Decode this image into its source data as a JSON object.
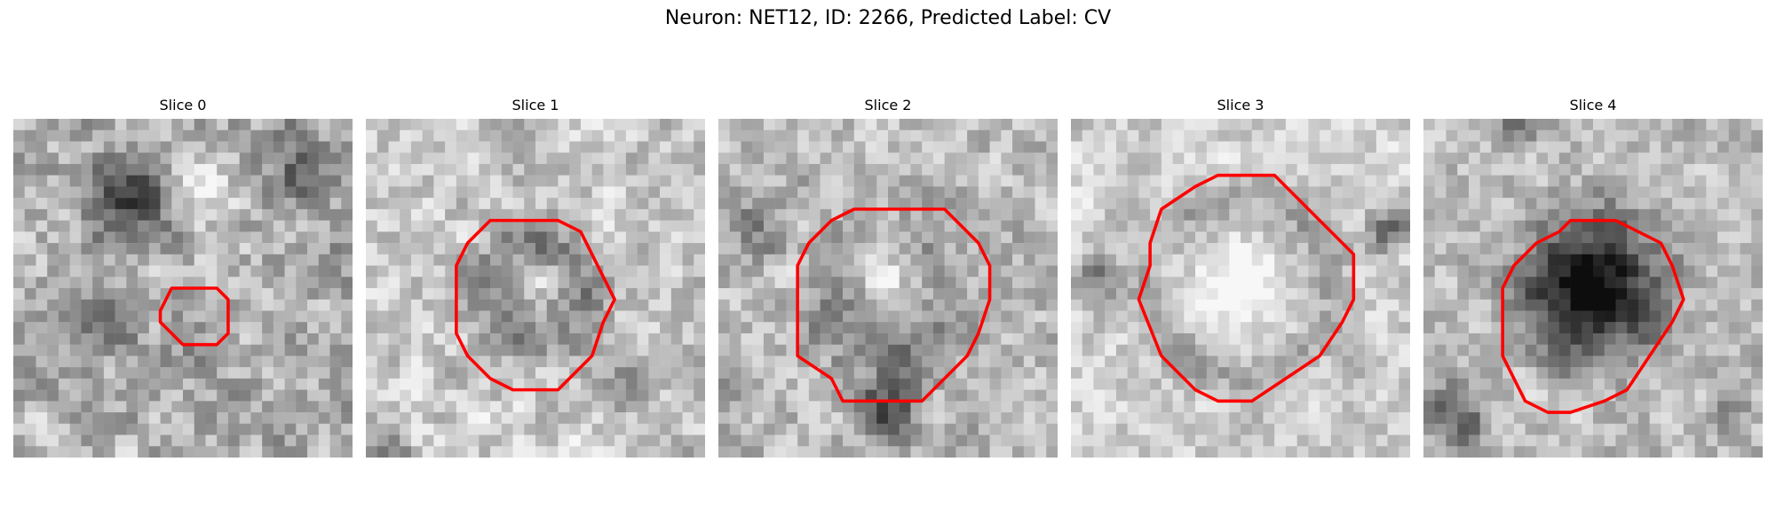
{
  "figure": {
    "title": "Neuron: NET12, ID: 2266, Predicted Label: CV",
    "contour_color": "#ff0000",
    "colormap": "gray",
    "slices": [
      {
        "title": "Slice 0",
        "texture": {
          "seed": 11,
          "base": 0.7,
          "noise": 0.3,
          "blobs": [
            [
              10,
              7,
              6,
              -0.45
            ],
            [
              8,
              18,
              5,
              -0.2
            ],
            [
              25,
              4,
              5,
              -0.35
            ],
            [
              30,
              12,
              5,
              -0.15
            ],
            [
              17,
              6,
              5,
              0.2
            ],
            [
              16,
              19,
              5,
              -0.15
            ]
          ]
        },
        "contour": [
          [
            16,
            15
          ],
          [
            18,
            15
          ],
          [
            19,
            16
          ],
          [
            19,
            19
          ],
          [
            18,
            20
          ],
          [
            15,
            20
          ],
          [
            13,
            18
          ],
          [
            13,
            17
          ],
          [
            14,
            15
          ]
        ]
      },
      {
        "title": "Slice 1",
        "texture": {
          "seed": 23,
          "base": 0.78,
          "noise": 0.26,
          "blobs": [
            [
              15,
              15,
              8,
              -0.55
            ],
            [
              15,
              15,
              4,
              0.6
            ],
            [
              2,
              30,
              3,
              -0.3
            ],
            [
              22,
              23,
              4,
              -0.25
            ]
          ]
        },
        "contour": [
          [
            13,
            9
          ],
          [
            17,
            9
          ],
          [
            19,
            10
          ],
          [
            20,
            12
          ],
          [
            21,
            14
          ],
          [
            22,
            16
          ],
          [
            21,
            18
          ],
          [
            20,
            21
          ],
          [
            17,
            24
          ],
          [
            13,
            24
          ],
          [
            11,
            23
          ],
          [
            9,
            21
          ],
          [
            8,
            19
          ],
          [
            8,
            13
          ],
          [
            9,
            11
          ],
          [
            11,
            9
          ]
        ]
      },
      {
        "title": "Slice 2",
        "texture": {
          "seed": 37,
          "base": 0.72,
          "noise": 0.26,
          "blobs": [
            [
              15,
              17,
              9,
              -0.35
            ],
            [
              15,
              15,
              5,
              0.45
            ],
            [
              15,
              26,
              4,
              -0.5
            ],
            [
              3,
              10,
              4,
              -0.2
            ]
          ]
        },
        "contour": [
          [
            12,
            8
          ],
          [
            20,
            8
          ],
          [
            23,
            11
          ],
          [
            24,
            13
          ],
          [
            24,
            16
          ],
          [
            23,
            19
          ],
          [
            22,
            21
          ],
          [
            20,
            23
          ],
          [
            18,
            25
          ],
          [
            11,
            25
          ],
          [
            10,
            23
          ],
          [
            7,
            21
          ],
          [
            7,
            13
          ],
          [
            8,
            11
          ],
          [
            10,
            9
          ]
        ]
      },
      {
        "title": "Slice 3",
        "texture": {
          "seed": 51,
          "base": 0.8,
          "noise": 0.22,
          "blobs": [
            [
              15,
              15,
              11,
              -0.55
            ],
            [
              15,
              15,
              8,
              0.85
            ],
            [
              2,
              14,
              3,
              -0.4
            ],
            [
              28,
              10,
              3,
              -0.4
            ]
          ]
        },
        "contour": [
          [
            13,
            5
          ],
          [
            18,
            5
          ],
          [
            20,
            7
          ],
          [
            22,
            9
          ],
          [
            25,
            12
          ],
          [
            25,
            16
          ],
          [
            24,
            18
          ],
          [
            22,
            21
          ],
          [
            19,
            23
          ],
          [
            16,
            25
          ],
          [
            13,
            25
          ],
          [
            11,
            24
          ],
          [
            8,
            21
          ],
          [
            6,
            16
          ],
          [
            7,
            13
          ],
          [
            7,
            11
          ],
          [
            8,
            8
          ],
          [
            11,
            6
          ]
        ]
      },
      {
        "title": "Slice 4",
        "texture": {
          "seed": 67,
          "base": 0.74,
          "noise": 0.24,
          "blobs": [
            [
              15,
              15,
              10,
              -0.7
            ],
            [
              14,
              15,
              6,
              -0.2
            ],
            [
              3,
              26,
              4,
              -0.45
            ],
            [
              27,
              26,
              3,
              -0.3
            ],
            [
              8,
              1,
              3,
              -0.3
            ]
          ]
        },
        "contour": [
          [
            13,
            9
          ],
          [
            17,
            9
          ],
          [
            19,
            10
          ],
          [
            21,
            11
          ],
          [
            22,
            13
          ],
          [
            23,
            16
          ],
          [
            22,
            18
          ],
          [
            20,
            21
          ],
          [
            18,
            24
          ],
          [
            16,
            25
          ],
          [
            13,
            26
          ],
          [
            11,
            26
          ],
          [
            9,
            25
          ],
          [
            8,
            23
          ],
          [
            7,
            21
          ],
          [
            7,
            15
          ],
          [
            8,
            13
          ],
          [
            10,
            11
          ],
          [
            12,
            10
          ]
        ]
      }
    ]
  }
}
